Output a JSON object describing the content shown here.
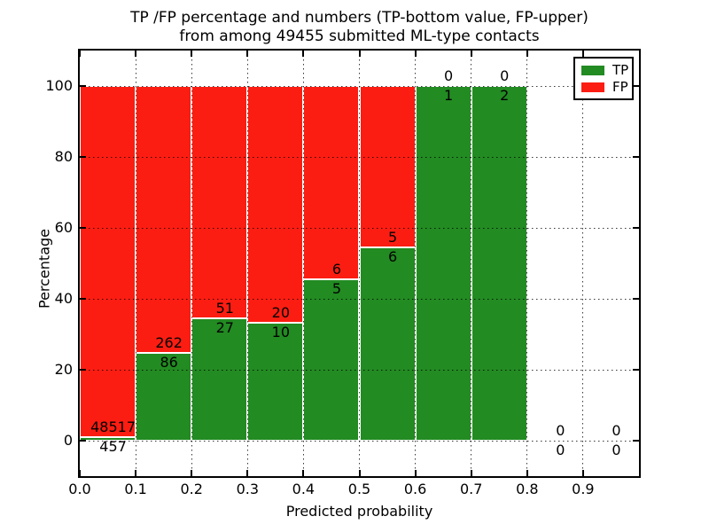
{
  "chart_data": {
    "type": "bar",
    "stacked": true,
    "title": "TP /FP percentage and numbers (TP-bottom value, FP-upper) from among 49455 submitted ML-type contacts",
    "title_line1": "TP /FP percentage and numbers (TP-bottom value, FP-upper)",
    "title_line2": "from among 49455 submitted ML-type contacts",
    "xlabel": "Predicted probability",
    "ylabel": "Percentage",
    "xlim": [
      0.0,
      1.0
    ],
    "ylim": [
      -10,
      110
    ],
    "x_ticks": [
      0.0,
      0.1,
      0.2,
      0.3,
      0.4,
      0.5,
      0.6,
      0.7,
      0.8,
      0.9
    ],
    "x_tick_labels": [
      "0.0",
      "0.1",
      "0.2",
      "0.3",
      "0.4",
      "0.5",
      "0.6",
      "0.7",
      "0.8",
      "0.9"
    ],
    "y_ticks": [
      0,
      20,
      40,
      60,
      80,
      100
    ],
    "y_tick_labels": [
      "0",
      "20",
      "40",
      "60",
      "80",
      "100"
    ],
    "grid": "dotted",
    "legend_position": "upper-right",
    "bin_width": 0.1,
    "bins_start": [
      0.0,
      0.1,
      0.2,
      0.3,
      0.4,
      0.5,
      0.6,
      0.7,
      0.8,
      0.9
    ],
    "series": [
      {
        "name": "TP",
        "color": "#228b22",
        "values": [
          457,
          86,
          27,
          10,
          5,
          6,
          1,
          2,
          0,
          0
        ]
      },
      {
        "name": "FP",
        "color": "#fc1d12",
        "values": [
          48517,
          262,
          51,
          20,
          6,
          5,
          0,
          0,
          0,
          0
        ]
      }
    ],
    "bar_value_labels": {
      "tp_bottom": [
        "457",
        "86",
        "27",
        "10",
        "5",
        "6",
        "1",
        "2",
        "0",
        "0"
      ],
      "fp_upper": [
        "48517",
        "262",
        "51",
        "20",
        "6",
        "5",
        "0",
        "0",
        "0",
        "0"
      ]
    }
  }
}
